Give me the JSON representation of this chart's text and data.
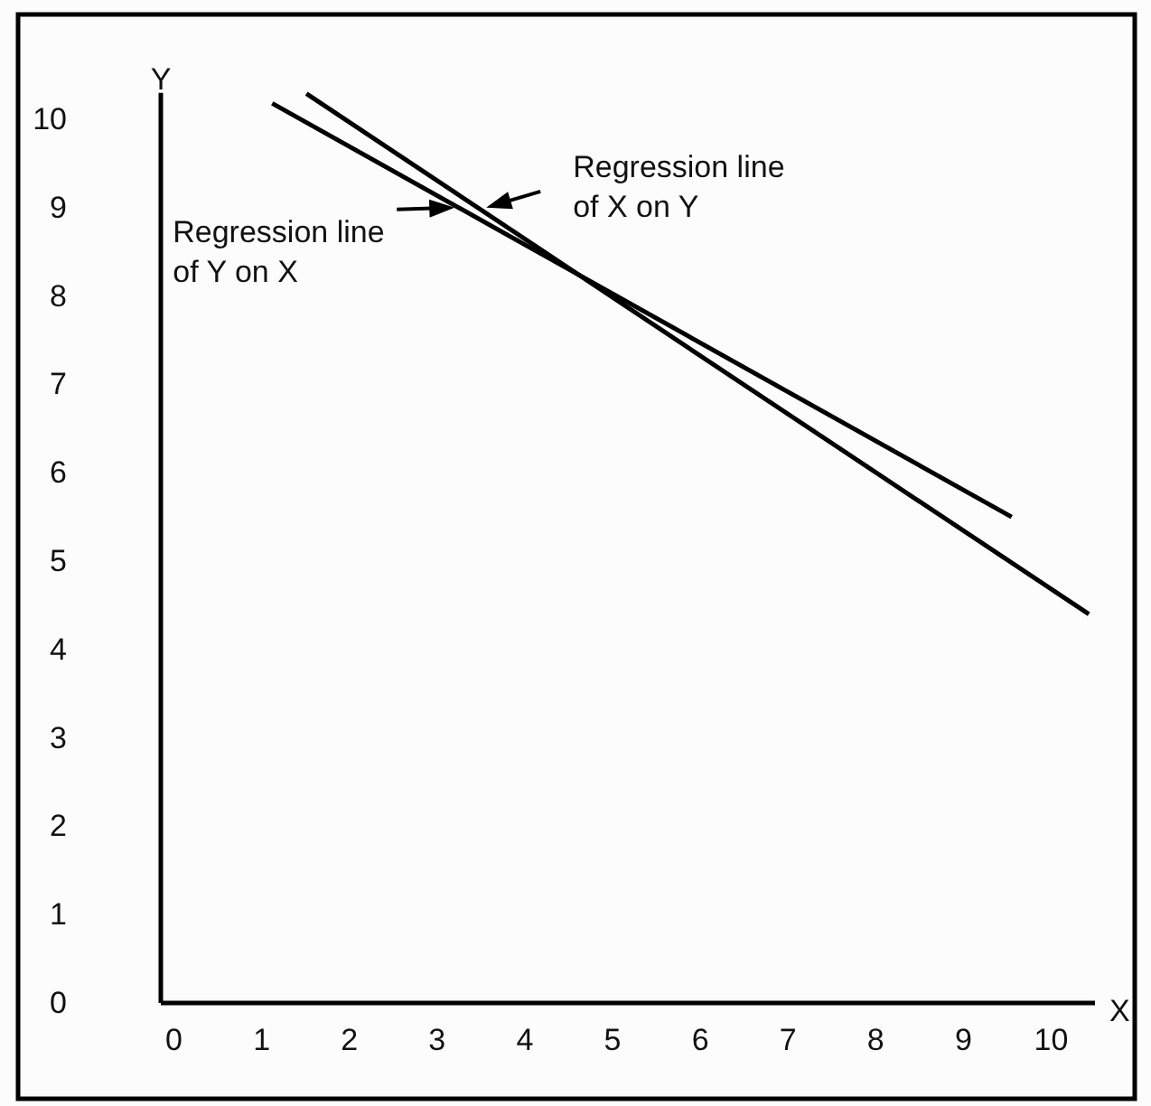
{
  "chart_data": {
    "type": "line",
    "xlabel": "X",
    "ylabel": "Y",
    "xlim": [
      -0.15,
      10.5
    ],
    "ylim": [
      0,
      10.3
    ],
    "xticks": [
      0,
      1,
      2,
      3,
      4,
      5,
      6,
      7,
      8,
      9,
      10
    ],
    "yticks": [
      0,
      1,
      2,
      3,
      4,
      5,
      6,
      7,
      8,
      9,
      10
    ],
    "grid": false,
    "marker": "none",
    "line_style": "solid",
    "series": [
      {
        "color": "#000000",
        "x": [
          1.12,
          9.55
        ],
        "values": [
          10.18,
          5.5
        ]
      },
      {
        "color": "#000000",
        "x": [
          1.51,
          10.43
        ],
        "values": [
          10.29,
          4.4
        ]
      }
    ],
    "annotations": [
      {
        "text": "Regression line\nof Y on X",
        "x": 3.2,
        "y": 9.0
      },
      {
        "text": "Regression line\nof X on Y",
        "x": 3.56,
        "y": 9.0
      }
    ]
  }
}
